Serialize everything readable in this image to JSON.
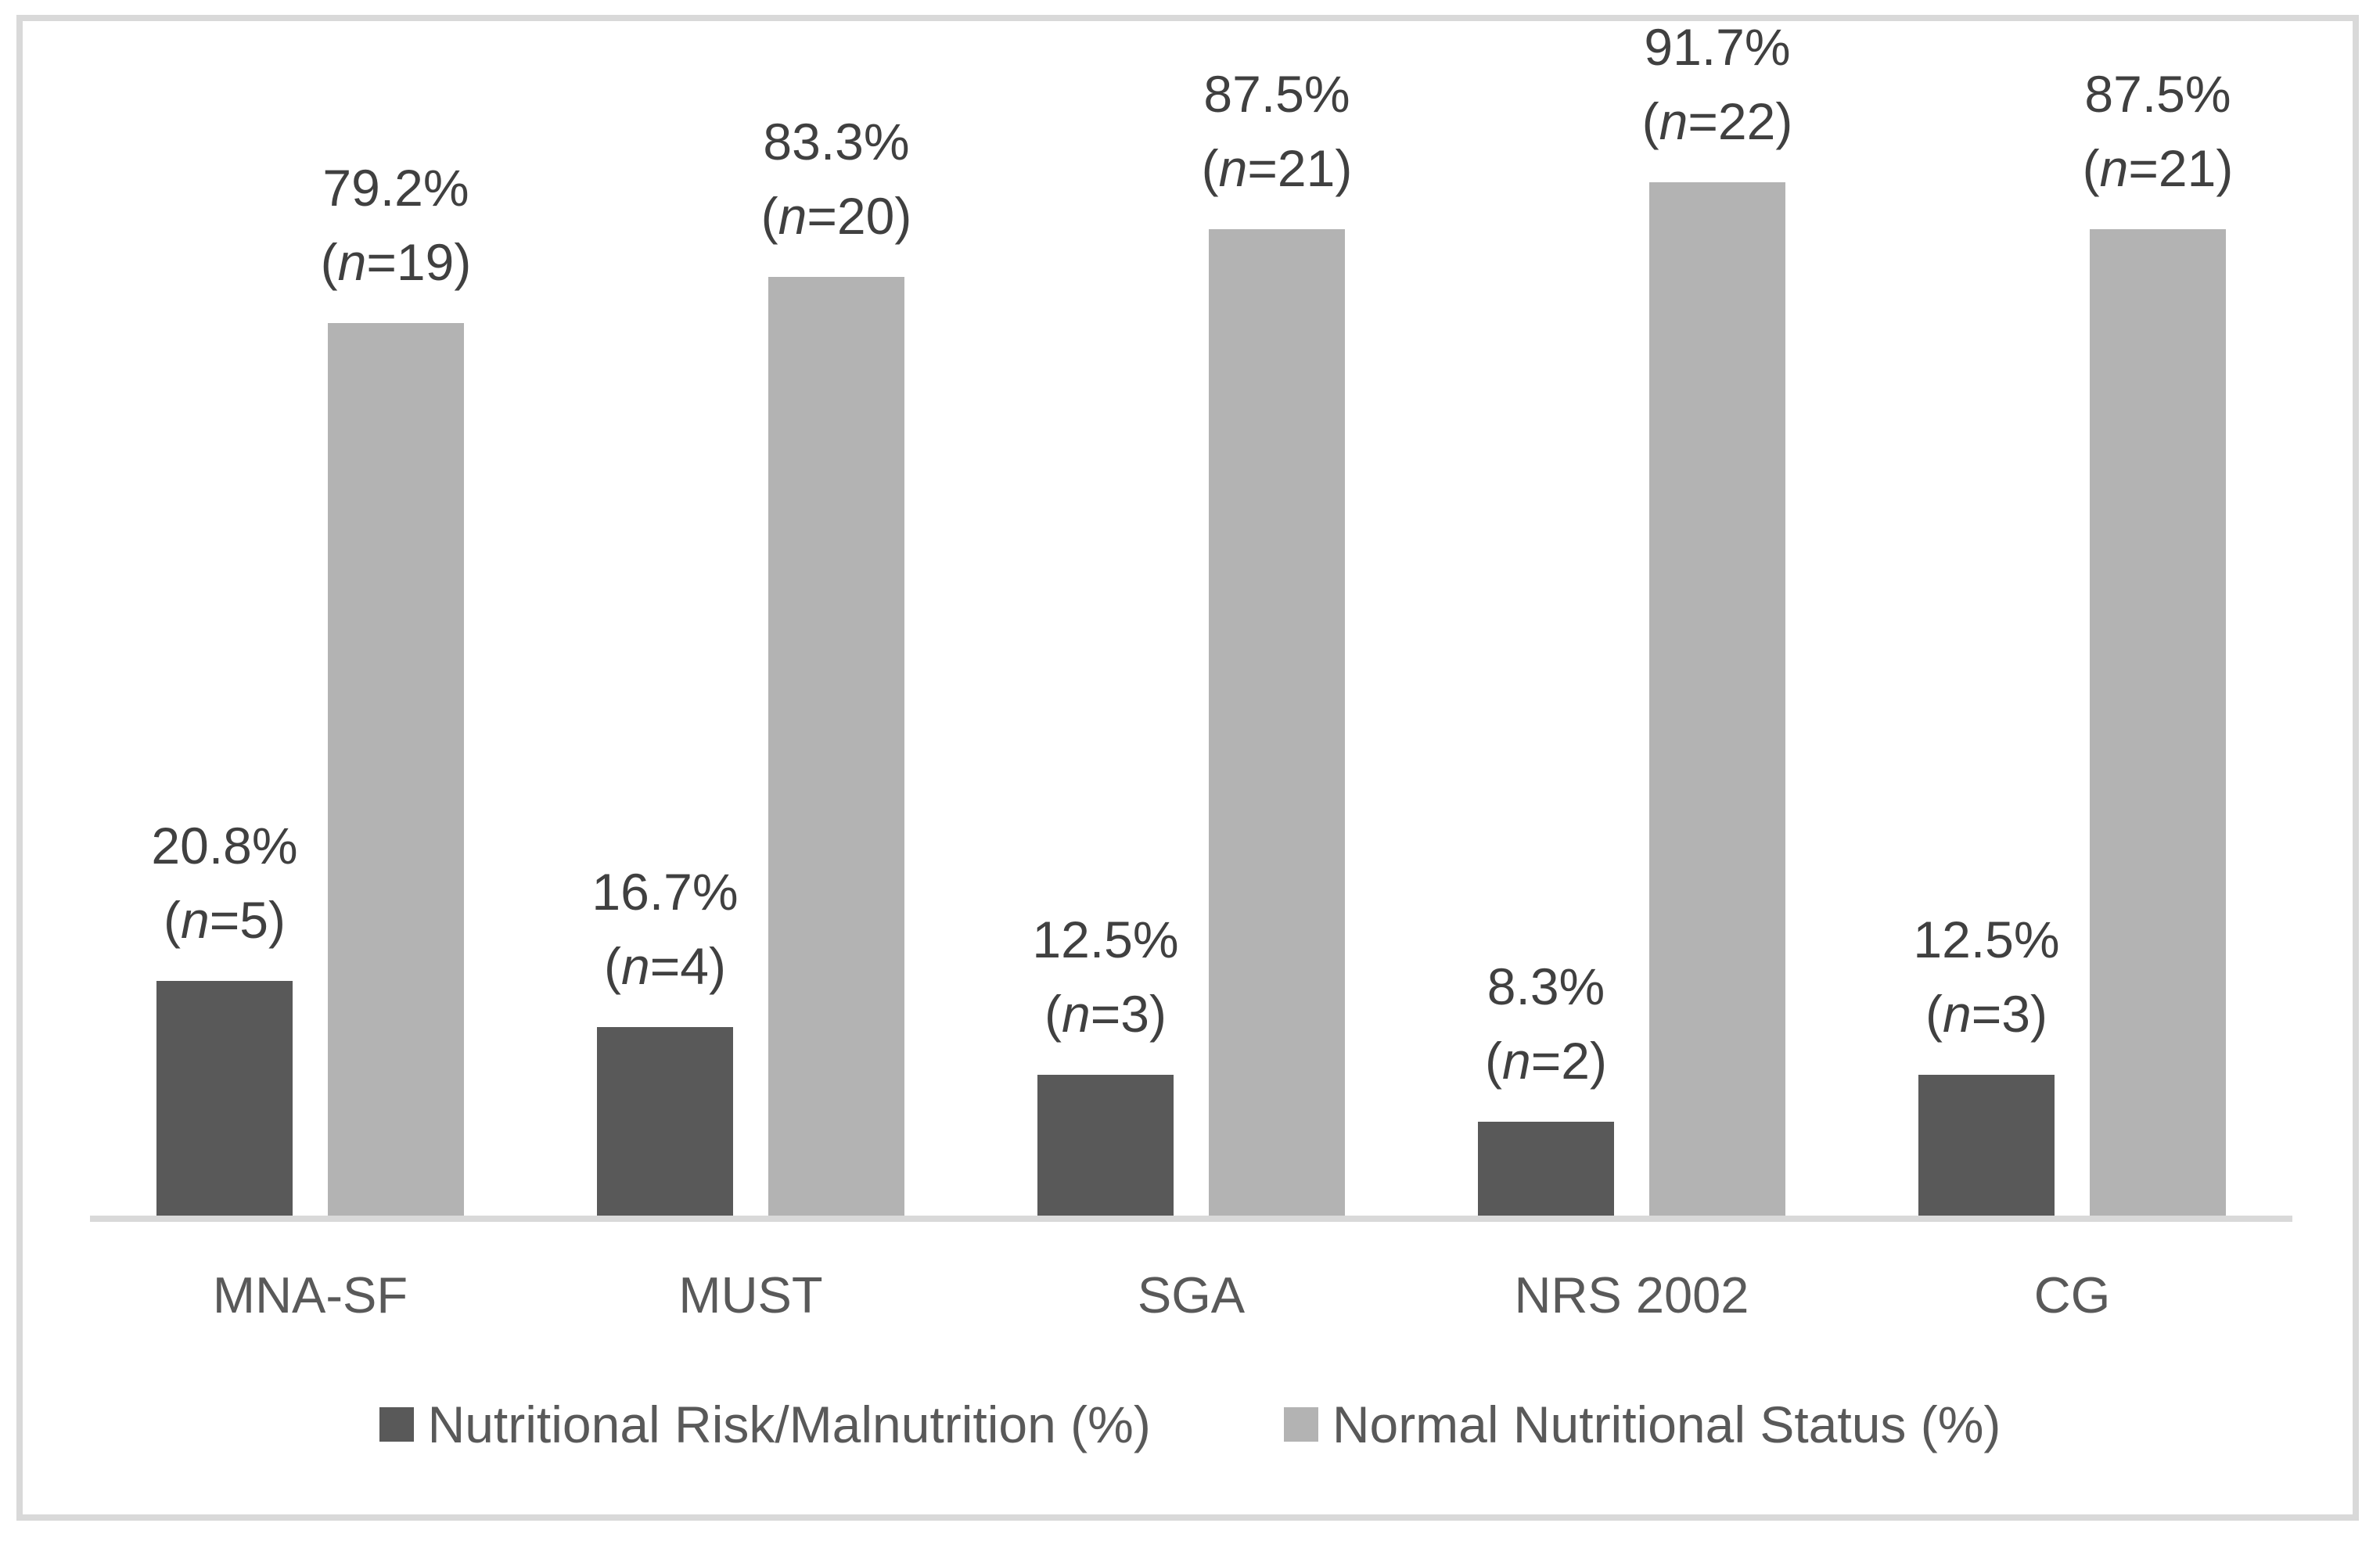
{
  "figure": {
    "background": "#ffffff",
    "border_color": "#d9d9d9"
  },
  "chart_data": {
    "type": "bar",
    "title": "",
    "xlabel": "",
    "ylabel": "",
    "ylim": [
      0,
      100
    ],
    "grid": false,
    "y_axis_labels_visible": false,
    "legend_position": "bottom",
    "axis_line_color": "#d9d9d9",
    "data_label_color": "#404040",
    "category_label_color": "#595959",
    "categories": [
      "MNA-SF",
      "MUST",
      "SGA",
      "NRS 2002",
      "CG"
    ],
    "n_format": {
      "open": "(",
      "symbol": "n",
      "equals": "=",
      "close": ")"
    },
    "series": [
      {
        "name": "Nutritional Risk/Malnutrition (%)",
        "color": "#595959",
        "values": [
          20.8,
          16.7,
          12.5,
          8.3,
          12.5
        ],
        "data_labels": [
          "20.8%",
          "16.7%",
          "12.5%",
          "8.3%",
          "12.5%"
        ],
        "counts": [
          5,
          4,
          3,
          2,
          3
        ]
      },
      {
        "name": "Normal Nutritional Status (%)",
        "color": "#b3b3b3",
        "values": [
          79.2,
          83.3,
          87.5,
          91.7,
          87.5
        ],
        "data_labels": [
          "79.2%",
          "83.3%",
          "87.5%",
          "91.7%",
          "87.5%"
        ],
        "counts": [
          19,
          20,
          21,
          22,
          21
        ]
      }
    ]
  }
}
